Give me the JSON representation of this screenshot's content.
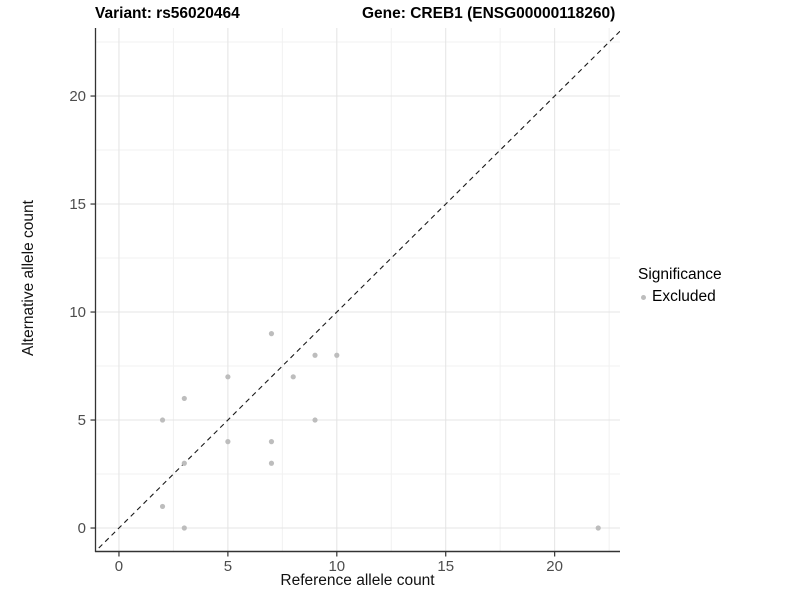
{
  "chart_data": {
    "type": "scatter",
    "title_left": "Variant: rs56020464",
    "title_right": "Gene: CREB1 (ENSG00000118260)",
    "xlabel": "Reference allele count",
    "ylabel": "Alternative allele count",
    "xlim": [
      -1.1,
      23.0
    ],
    "ylim": [
      -1.11,
      23.15
    ],
    "x_major_ticks": [
      0,
      5,
      10,
      15,
      20
    ],
    "y_major_ticks": [
      0,
      5,
      10,
      15,
      20
    ],
    "x_minor_ticks": [
      2.5,
      7.5,
      12.5,
      17.5,
      22.5
    ],
    "y_minor_ticks": [
      2.5,
      7.5,
      12.5,
      17.5,
      22.5
    ],
    "grid_on": true,
    "points": [
      {
        "x": 2,
        "y": 1,
        "significance": "Excluded"
      },
      {
        "x": 2,
        "y": 5,
        "significance": "Excluded"
      },
      {
        "x": 3,
        "y": 0,
        "significance": "Excluded"
      },
      {
        "x": 3,
        "y": 3,
        "significance": "Excluded"
      },
      {
        "x": 3,
        "y": 6,
        "significance": "Excluded"
      },
      {
        "x": 5,
        "y": 4,
        "significance": "Excluded"
      },
      {
        "x": 5,
        "y": 7,
        "significance": "Excluded"
      },
      {
        "x": 7,
        "y": 3,
        "significance": "Excluded"
      },
      {
        "x": 7,
        "y": 4,
        "significance": "Excluded"
      },
      {
        "x": 7,
        "y": 9,
        "significance": "Excluded"
      },
      {
        "x": 8,
        "y": 7,
        "significance": "Excluded"
      },
      {
        "x": 9,
        "y": 5,
        "significance": "Excluded"
      },
      {
        "x": 9,
        "y": 8,
        "significance": "Excluded"
      },
      {
        "x": 10,
        "y": 8,
        "significance": "Excluded"
      },
      {
        "x": 22,
        "y": 0,
        "significance": "Excluded"
      }
    ],
    "identity_line": {
      "slope": 1,
      "intercept": 0,
      "style": "dashed",
      "color": "#1a1a1a"
    },
    "legend": {
      "title": "Significance",
      "position": "right",
      "items": [
        {
          "label": "Excluded",
          "color": "#bdbdbd"
        }
      ]
    },
    "point_color": "#bdbdbd",
    "point_radius": 2.6,
    "colors": {
      "axis_line": "#333333",
      "tick_label": "#4d4d4d",
      "grid_major": "#e4e4e4",
      "grid_minor": "#f1f1f1"
    }
  }
}
